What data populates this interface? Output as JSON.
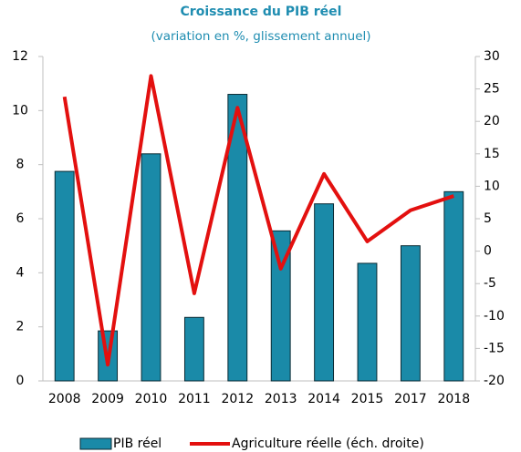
{
  "chart_data": {
    "type": "bar",
    "title": "Croissance du PIB réel",
    "subtitle": "(variation en %, glissement annuel)",
    "categories": [
      "2008",
      "2009",
      "2010",
      "2011",
      "2012",
      "2013",
      "2014",
      "2015",
      "2017",
      "2018"
    ],
    "series": [
      {
        "name": "PIB réel",
        "type": "bar",
        "color": "#1a8aa8",
        "values": [
          7.75,
          1.85,
          8.4,
          2.35,
          10.6,
          5.55,
          6.55,
          4.35,
          5.0,
          7.0
        ]
      },
      {
        "name": "Agriculture réelle (éch. droite)",
        "type": "line",
        "axis": "y2",
        "color": "#e3100f",
        "values": [
          23.8,
          -17.5,
          27.0,
          -6.5,
          22.1,
          -2.7,
          11.9,
          1.5,
          6.3,
          8.5
        ]
      }
    ],
    "ylim": [
      0,
      12
    ],
    "yticks": [
      0,
      2,
      4,
      6,
      8,
      10,
      12
    ],
    "y2lim": [
      -20,
      30
    ],
    "y2ticks": [
      -20,
      -15,
      -10,
      -5,
      0,
      5,
      10,
      15,
      20,
      25,
      30
    ],
    "legend": "bottom"
  }
}
